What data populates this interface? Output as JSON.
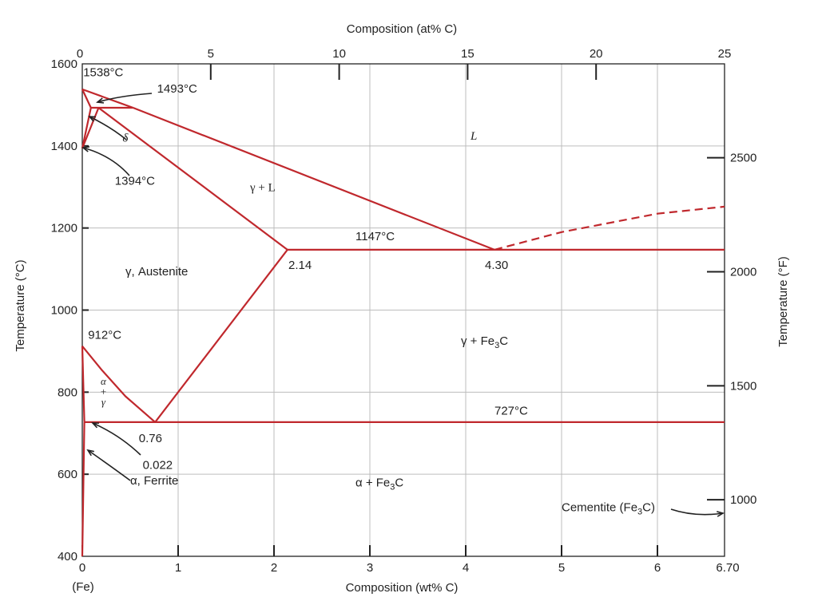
{
  "chart_data": {
    "type": "line",
    "title": "",
    "xlabel": "Composition (wt% C)",
    "x2label": "Composition (at% C)",
    "ylabel": "Temperature (°C)",
    "y2label": "Temperature (°F)",
    "xlim": [
      0,
      6.7
    ],
    "ylim": [
      400,
      1600
    ],
    "x2lim": [
      0,
      25
    ],
    "y2lim": [
      752,
      2912
    ],
    "x_ticks": [
      {
        "value": 0,
        "label": "0"
      },
      {
        "value": 1,
        "label": "1"
      },
      {
        "value": 2,
        "label": "2"
      },
      {
        "value": 3,
        "label": "3"
      },
      {
        "value": 4,
        "label": "4"
      },
      {
        "value": 5,
        "label": "5"
      },
      {
        "value": 6,
        "label": "6"
      },
      {
        "value": 6.7,
        "label": "6.70"
      }
    ],
    "x_origin_note": "(Fe)",
    "x2_ticks": [
      {
        "value": 0,
        "label": "0"
      },
      {
        "value": 5,
        "label": "5"
      },
      {
        "value": 10,
        "label": "10"
      },
      {
        "value": 15,
        "label": "15"
      },
      {
        "value": 20,
        "label": "20"
      },
      {
        "value": 25,
        "label": "25"
      }
    ],
    "y_ticks": [
      {
        "value": 400,
        "label": "400"
      },
      {
        "value": 600,
        "label": "600"
      },
      {
        "value": 800,
        "label": "800"
      },
      {
        "value": 1000,
        "label": "1000"
      },
      {
        "value": 1200,
        "label": "1200"
      },
      {
        "value": 1400,
        "label": "1400"
      },
      {
        "value": 1600,
        "label": "1600"
      }
    ],
    "y2_ticks": [
      {
        "value": 1000,
        "label": "1000"
      },
      {
        "value": 1500,
        "label": "1500"
      },
      {
        "value": 2000,
        "label": "2000"
      },
      {
        "value": 2500,
        "label": "2500"
      }
    ],
    "grid": true,
    "series": [
      {
        "id": "liquidus-delta",
        "style": "solid",
        "points": [
          [
            0,
            1538
          ],
          [
            0.53,
            1493
          ]
        ]
      },
      {
        "id": "liquidus-austenite",
        "style": "solid",
        "points": [
          [
            0.53,
            1493
          ],
          [
            4.3,
            1147
          ]
        ]
      },
      {
        "id": "liquidus-cementite",
        "style": "dashed",
        "points": [
          [
            4.3,
            1147
          ],
          [
            5.0,
            1190
          ],
          [
            6.0,
            1235
          ],
          [
            6.7,
            1252
          ]
        ]
      },
      {
        "id": "peritectic-line",
        "style": "solid",
        "points": [
          [
            0.09,
            1493
          ],
          [
            0.53,
            1493
          ]
        ]
      },
      {
        "id": "delta-solidus",
        "style": "solid",
        "points": [
          [
            0,
            1538
          ],
          [
            0.09,
            1493
          ]
        ]
      },
      {
        "id": "delta-solvus",
        "style": "solid",
        "points": [
          [
            0,
            1394
          ],
          [
            0.09,
            1493
          ]
        ]
      },
      {
        "id": "gamma-delta-boundary",
        "style": "solid",
        "points": [
          [
            0,
            1394
          ],
          [
            0.17,
            1493
          ]
        ]
      },
      {
        "id": "austenite-solidus",
        "style": "solid",
        "points": [
          [
            0.17,
            1493
          ],
          [
            2.14,
            1147
          ]
        ]
      },
      {
        "id": "eutectic-line",
        "style": "solid",
        "points": [
          [
            2.14,
            1147
          ],
          [
            6.7,
            1147
          ]
        ]
      },
      {
        "id": "acm-line",
        "style": "solid",
        "points": [
          [
            2.14,
            1147
          ],
          [
            0.76,
            727
          ]
        ]
      },
      {
        "id": "a3-line",
        "style": "solid",
        "points": [
          [
            0,
            912
          ],
          [
            0.2,
            855
          ],
          [
            0.45,
            790
          ],
          [
            0.76,
            727
          ]
        ]
      },
      {
        "id": "eutectoid-line",
        "style": "solid",
        "points": [
          [
            0.022,
            727
          ],
          [
            6.7,
            727
          ]
        ]
      },
      {
        "id": "alpha-gamma-boundary",
        "style": "solid",
        "points": [
          [
            0,
            912
          ],
          [
            0.022,
            727
          ]
        ]
      },
      {
        "id": "ferrite-solvus",
        "style": "solid",
        "points": [
          [
            0.022,
            727
          ],
          [
            0.0,
            400
          ]
        ]
      }
    ],
    "annotations": [
      {
        "id": "t1538",
        "text": "1538°C",
        "x": 0.01,
        "y": 1570
      },
      {
        "id": "t1493",
        "text": "1493°C",
        "x": 0.78,
        "y": 1530
      },
      {
        "id": "t1394",
        "text": "1394°C",
        "x": 0.34,
        "y": 1305
      },
      {
        "id": "t1147",
        "text": "1147°C",
        "x": 2.85,
        "y": 1170
      },
      {
        "id": "c214",
        "text": "2.14",
        "x": 2.15,
        "y": 1100
      },
      {
        "id": "c430",
        "text": "4.30",
        "x": 4.2,
        "y": 1100
      },
      {
        "id": "t912",
        "text": "912°C",
        "x": 0.06,
        "y": 930
      },
      {
        "id": "t727",
        "text": "727°C",
        "x": 4.3,
        "y": 745
      },
      {
        "id": "c076",
        "text": "0.76",
        "x": 0.59,
        "y": 678
      },
      {
        "id": "c0022",
        "text": "0.022",
        "x": 0.63,
        "y": 613
      },
      {
        "id": "ferrite",
        "text": "α, Ferrite",
        "x": 0.5,
        "y": 575
      },
      {
        "id": "austenite",
        "text": "γ, Austenite",
        "x": 0.45,
        "y": 1085
      },
      {
        "id": "gl",
        "text": "γ + L",
        "x": 1.75,
        "y": 1290
      },
      {
        "id": "liquid",
        "text": "L",
        "x": 4.05,
        "y": 1415
      },
      {
        "id": "delta",
        "text": "δ",
        "x": 0.42,
        "y": 1410
      },
      {
        "id": "gfe3c",
        "text": "γ + Fe3C",
        "x": 3.95,
        "y": 915
      },
      {
        "id": "afe3c",
        "text": "α + Fe3C",
        "x": 2.85,
        "y": 570
      },
      {
        "id": "alpha-gamma",
        "text": "α + γ",
        "x": 0.22,
        "y": 795
      },
      {
        "id": "cementite",
        "text": "Cementite (Fe3C)",
        "x": 5.0,
        "y": 510
      }
    ]
  }
}
